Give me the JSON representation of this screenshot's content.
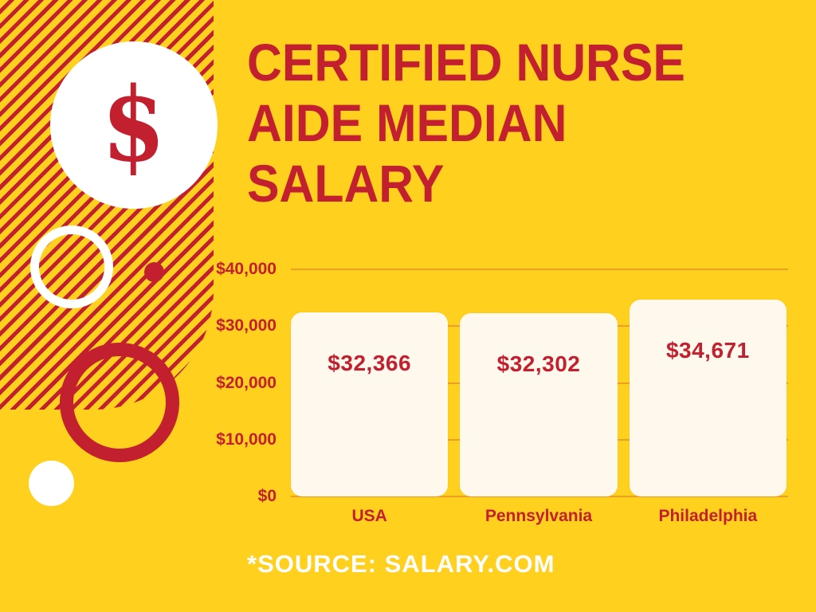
{
  "title": "CERTIFIED NURSE AIDE MEDIAN SALARY",
  "title_lines": [
    "CERTIFIED NURSE",
    "AIDE MEDIAN",
    "SALARY"
  ],
  "dollar_symbol": "$",
  "source_text": "*SOURCE: SALARY.COM",
  "colors": {
    "background": "#FFD01E",
    "accent_red": "#C2202F",
    "bar_fill": "#FFF9ED",
    "source_text": "#FFFFFF",
    "gridline": "rgba(194,32,47,0.28)"
  },
  "chart_data": {
    "type": "bar",
    "title": "Certified Nurse Aide Median Salary",
    "categories": [
      "USA",
      "Pennsylvania",
      "Philadelphia"
    ],
    "values": [
      32366,
      32302,
      34671
    ],
    "value_labels": [
      "$32,366",
      "$32,302",
      "$34,671"
    ],
    "xlabel": "",
    "ylabel": "",
    "ylim": [
      0,
      40000
    ],
    "yticks": [
      0,
      10000,
      20000,
      30000,
      40000
    ],
    "ytick_labels": [
      "$0",
      "$10,000",
      "$20,000",
      "$30,000",
      "$40,000"
    ],
    "grid": true,
    "legend_position": "none",
    "source": "SALARY.COM"
  }
}
